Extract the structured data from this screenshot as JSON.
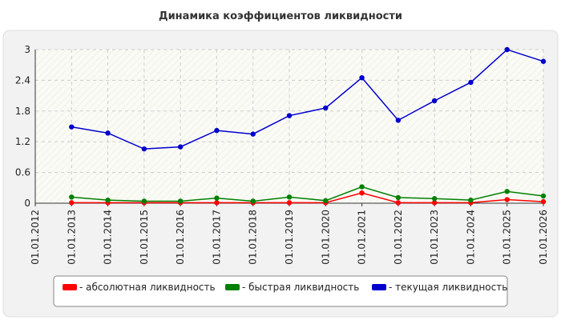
{
  "chart_data": {
    "type": "line",
    "title": "Динамика коэффициентов ликвидности",
    "xlabel": "",
    "ylabel": "",
    "ylim": [
      0,
      3
    ],
    "yticks": [
      "0",
      "0.6",
      "1.2",
      "1.8",
      "2.4",
      "3"
    ],
    "yticks_values": [
      0,
      0.6,
      1.2,
      1.8,
      2.4,
      3
    ],
    "categories": [
      "01.01.2012",
      "01.01.2013",
      "01.01.2014",
      "01.01.2015",
      "01.01.2016",
      "01.01.2017",
      "01.01.2018",
      "01.01.2019",
      "01.01.2020",
      "01.01.2021",
      "01.01.2022",
      "01.01.2023",
      "01.01.2024",
      "01.01.2025",
      "01.01.2026"
    ],
    "grid": true,
    "legend_position": "bottom",
    "series": [
      {
        "name": "- абсолютная ликвидность",
        "color": "#ff0000",
        "values": [
          null,
          0.01,
          0.01,
          0.01,
          0.01,
          0.01,
          0.01,
          0.01,
          0.01,
          0.2,
          0.01,
          0.01,
          0.01,
          0.07,
          0.03
        ]
      },
      {
        "name": "- быстрая ликвидность",
        "color": "#008000",
        "values": [
          null,
          0.12,
          0.06,
          0.04,
          0.04,
          0.1,
          0.04,
          0.12,
          0.05,
          0.32,
          0.11,
          0.09,
          0.06,
          0.23,
          0.14
        ]
      },
      {
        "name": "- текущая ликвидность",
        "color": "#0000cc",
        "values": [
          null,
          1.49,
          1.37,
          1.06,
          1.1,
          1.42,
          1.35,
          1.71,
          1.86,
          2.45,
          1.62,
          2.0,
          2.36,
          3.0,
          2.77
        ]
      }
    ]
  }
}
